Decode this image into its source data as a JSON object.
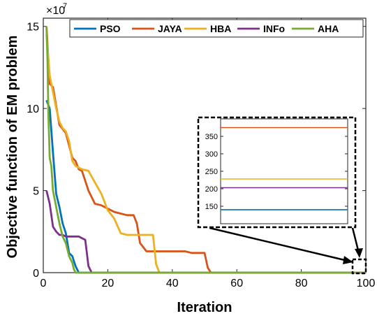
{
  "chart_data": {
    "type": "line",
    "xlabel": "Iteration",
    "ylabel": "Objective function of EM problem",
    "y_multiplier": "×10",
    "y_exponent": "7",
    "xlim": [
      0,
      100
    ],
    "ylim": [
      0,
      15.5
    ],
    "xticks": [
      "0",
      "20",
      "40",
      "60",
      "80",
      "100"
    ],
    "yticks": [
      "0",
      "5",
      "10",
      "15"
    ],
    "legend_position": "top",
    "series": [
      {
        "name": "PSO",
        "color": "#0072BD",
        "x": [
          1,
          2,
          3,
          4,
          5,
          6,
          7,
          8,
          9,
          10,
          11,
          100
        ],
        "y": [
          10.5,
          10.0,
          7.3,
          4.8,
          4.0,
          3.0,
          2.4,
          1.2,
          1.0,
          0.4,
          0.0,
          0.0
        ]
      },
      {
        "name": "JAYA",
        "color": "#D95319",
        "x": [
          1,
          2,
          3,
          5,
          7,
          9,
          10,
          11,
          12,
          14,
          16,
          18,
          20,
          22,
          24,
          26,
          28,
          29,
          30,
          32,
          34,
          40,
          44,
          46,
          48,
          50,
          51,
          52,
          100
        ],
        "y": [
          15.0,
          11.5,
          11.3,
          9.0,
          8.5,
          7.0,
          6.8,
          6.3,
          6.2,
          5.0,
          4.2,
          4.1,
          3.9,
          3.7,
          3.6,
          3.5,
          3.5,
          3.0,
          1.8,
          1.3,
          1.3,
          1.3,
          1.3,
          1.2,
          1.2,
          1.2,
          0.3,
          0.0,
          0.0
        ]
      },
      {
        "name": "HBA",
        "color": "#EDB120",
        "x": [
          1,
          2,
          3,
          4,
          5,
          6,
          7,
          8,
          9,
          10,
          12,
          14,
          16,
          18,
          20,
          22,
          24,
          26,
          28,
          30,
          32,
          34,
          35,
          36,
          100
        ],
        "y": [
          14.5,
          12.0,
          11.0,
          10.0,
          9.2,
          8.8,
          8.6,
          8.0,
          6.8,
          6.5,
          6.3,
          6.2,
          5.5,
          4.8,
          3.8,
          3.3,
          2.4,
          2.3,
          2.3,
          2.3,
          2.3,
          2.3,
          0.5,
          0.0,
          0.0
        ]
      },
      {
        "name": "INFo",
        "color": "#7E2F8E",
        "x": [
          1,
          2,
          3,
          4,
          5,
          6,
          7,
          8,
          9,
          10,
          11,
          12,
          13,
          14,
          15,
          100
        ],
        "y": [
          5.0,
          4.2,
          2.8,
          2.5,
          2.3,
          2.3,
          2.2,
          2.2,
          2.2,
          2.2,
          2.2,
          2.1,
          2.0,
          0.4,
          0.0,
          0.0
        ]
      },
      {
        "name": "AHA",
        "color": "#77AC30",
        "x": [
          1,
          1.3,
          1.6,
          2,
          2.5,
          3,
          3.5,
          4,
          5,
          6,
          7,
          8,
          9,
          9.5,
          10,
          100
        ],
        "y": [
          15.0,
          13.0,
          9.5,
          7.0,
          6.5,
          5.0,
          4.5,
          4.0,
          3.0,
          2.2,
          1.8,
          1.0,
          0.6,
          0.2,
          0.0,
          0.0
        ]
      }
    ],
    "inset": {
      "yticks": [
        "150",
        "200",
        "250",
        "300",
        "350"
      ],
      "ylim": [
        100,
        400
      ],
      "lines": [
        {
          "name": "JAYA",
          "value": 375,
          "color": "#D95319"
        },
        {
          "name": "HBA",
          "value": 228,
          "color": "#EDB120"
        },
        {
          "name": "INFo",
          "value": 203,
          "color": "#7E2F8E"
        },
        {
          "name": "AHA",
          "value": 140,
          "color": "#77AC30"
        },
        {
          "name": "PSO",
          "value": 140,
          "color": "#0072BD"
        }
      ]
    }
  }
}
